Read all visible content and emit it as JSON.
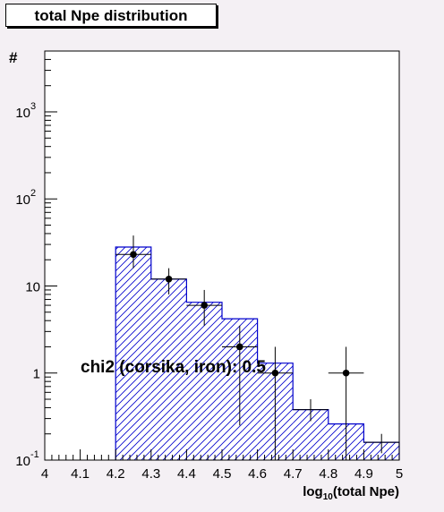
{
  "title": "total Npe distribution",
  "chart_data": {
    "type": "histogram",
    "title": "total Npe distribution",
    "xlabel_base": "log",
    "xlabel_sub": "10",
    "xlabel_rest": "(total Npe)",
    "ylabel": "#",
    "xlim": [
      4.0,
      5.0
    ],
    "ylim": [
      0.1,
      5000
    ],
    "yscale": "log",
    "x_ticks": [
      "4",
      "4.1",
      "4.2",
      "4.3",
      "4.4",
      "4.5",
      "4.6",
      "4.7",
      "4.8",
      "4.9",
      "5"
    ],
    "y_ticks": [
      {
        "value": 0.1,
        "base": "10",
        "exp": "-1"
      },
      {
        "value": 1,
        "base": "1",
        "exp": ""
      },
      {
        "value": 10,
        "base": "10",
        "exp": ""
      },
      {
        "value": 100,
        "base": "10",
        "exp": "2"
      },
      {
        "value": 1000,
        "base": "10",
        "exp": "3"
      }
    ],
    "bin_edges": [
      4.0,
      4.1,
      4.2,
      4.3,
      4.4,
      4.5,
      4.6,
      4.7,
      4.8,
      4.9,
      5.0
    ],
    "series": [
      {
        "kind": "simulation-histogram",
        "color": "#0000cc",
        "fill": "hatched",
        "values": [
          0,
          0,
          28,
          12,
          6.5,
          4.2,
          1.3,
          0.38,
          0.26,
          0.16
        ]
      },
      {
        "kind": "data-points",
        "color": "#000000",
        "points": [
          {
            "x": 4.25,
            "y": 23,
            "ylo": 16,
            "yhi": 38
          },
          {
            "x": 4.35,
            "y": 12,
            "ylo": 8,
            "yhi": 16
          },
          {
            "x": 4.45,
            "y": 6,
            "ylo": 3.5,
            "yhi": 9
          },
          {
            "x": 4.55,
            "y": 2,
            "ylo": 0.25,
            "yhi": 3.5
          },
          {
            "x": 4.65,
            "y": 1,
            "ylo": 0.1,
            "yhi": 2
          },
          {
            "x": 4.85,
            "y": 1,
            "ylo": 0.1,
            "yhi": 2
          }
        ],
        "extra_crosses": [
          {
            "x": 4.75,
            "y": 0.38,
            "ylo": 0.28,
            "yhi": 0.5
          },
          {
            "x": 4.95,
            "y": 0.16,
            "ylo": 0.12,
            "yhi": 0.2
          }
        ]
      }
    ],
    "annotation": "chi2 (corsika, iron): 0.5"
  }
}
